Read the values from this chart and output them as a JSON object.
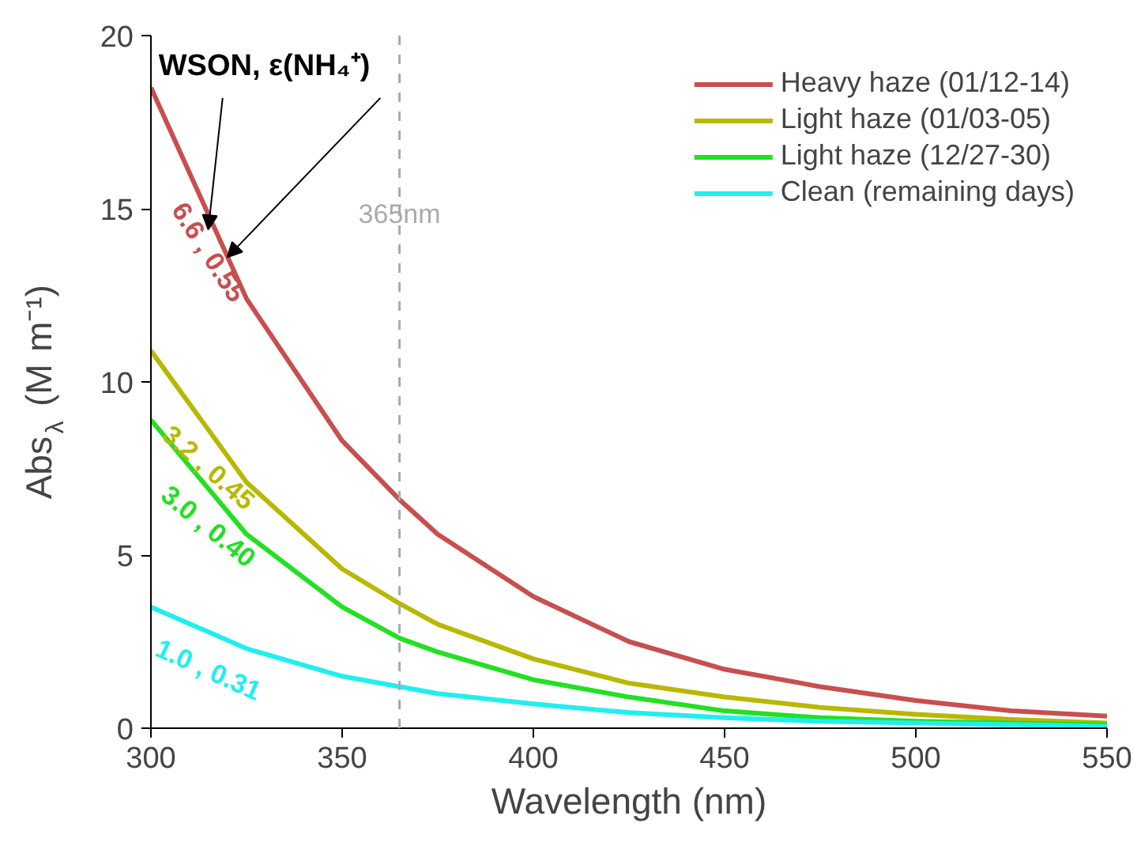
{
  "chart_data": {
    "type": "line",
    "xlabel": "Wavelength (nm)",
    "ylabel": "Abs$_{λ}$ (M m⁻¹)",
    "x": [
      300,
      325,
      350,
      365,
      375,
      400,
      425,
      450,
      475,
      500,
      525,
      550
    ],
    "series": [
      {
        "name": "Heavy haze (01/12-14)",
        "color": "#c84f4f",
        "values": [
          18.5,
          12.4,
          8.3,
          6.6,
          5.6,
          3.8,
          2.5,
          1.7,
          1.2,
          0.8,
          0.5,
          0.35
        ]
      },
      {
        "name": "Light haze (01/03-05)",
        "color": "#b8b800",
        "values": [
          10.9,
          7.1,
          4.6,
          3.6,
          3.0,
          2.0,
          1.3,
          0.9,
          0.6,
          0.4,
          0.25,
          0.15
        ]
      },
      {
        "name": "Light haze (12/27-30)",
        "color": "#22e022",
        "values": [
          8.9,
          5.6,
          3.5,
          2.6,
          2.2,
          1.4,
          0.9,
          0.5,
          0.3,
          0.2,
          0.15,
          0.1
        ]
      },
      {
        "name": "Clean (remaining days)",
        "color": "#22eeee",
        "values": [
          3.5,
          2.3,
          1.5,
          1.2,
          1.0,
          0.7,
          0.45,
          0.3,
          0.2,
          0.15,
          0.1,
          0.05
        ]
      }
    ],
    "xlim": [
      300,
      550
    ],
    "ylim": [
      0,
      20
    ],
    "xticks": [
      300,
      350,
      400,
      450,
      500,
      550
    ],
    "yticks": [
      0,
      5,
      10,
      15,
      20
    ],
    "ref_lines": [
      {
        "axis": "x",
        "value": 365,
        "label": "365nm",
        "color": "#aaaaaa",
        "line_style": "dashed"
      }
    ],
    "annotations": [
      {
        "text": "WSON, ε(NH₄⁺)",
        "x": 320,
        "y": 13.6
      },
      "6.6 , 0.55",
      "3.2 , 0.45",
      "3.0 , 0.40",
      "1.0 , 0.31"
    ],
    "legend": "top right",
    "grid": false,
    "marker": "none",
    "line_style": "solid"
  }
}
